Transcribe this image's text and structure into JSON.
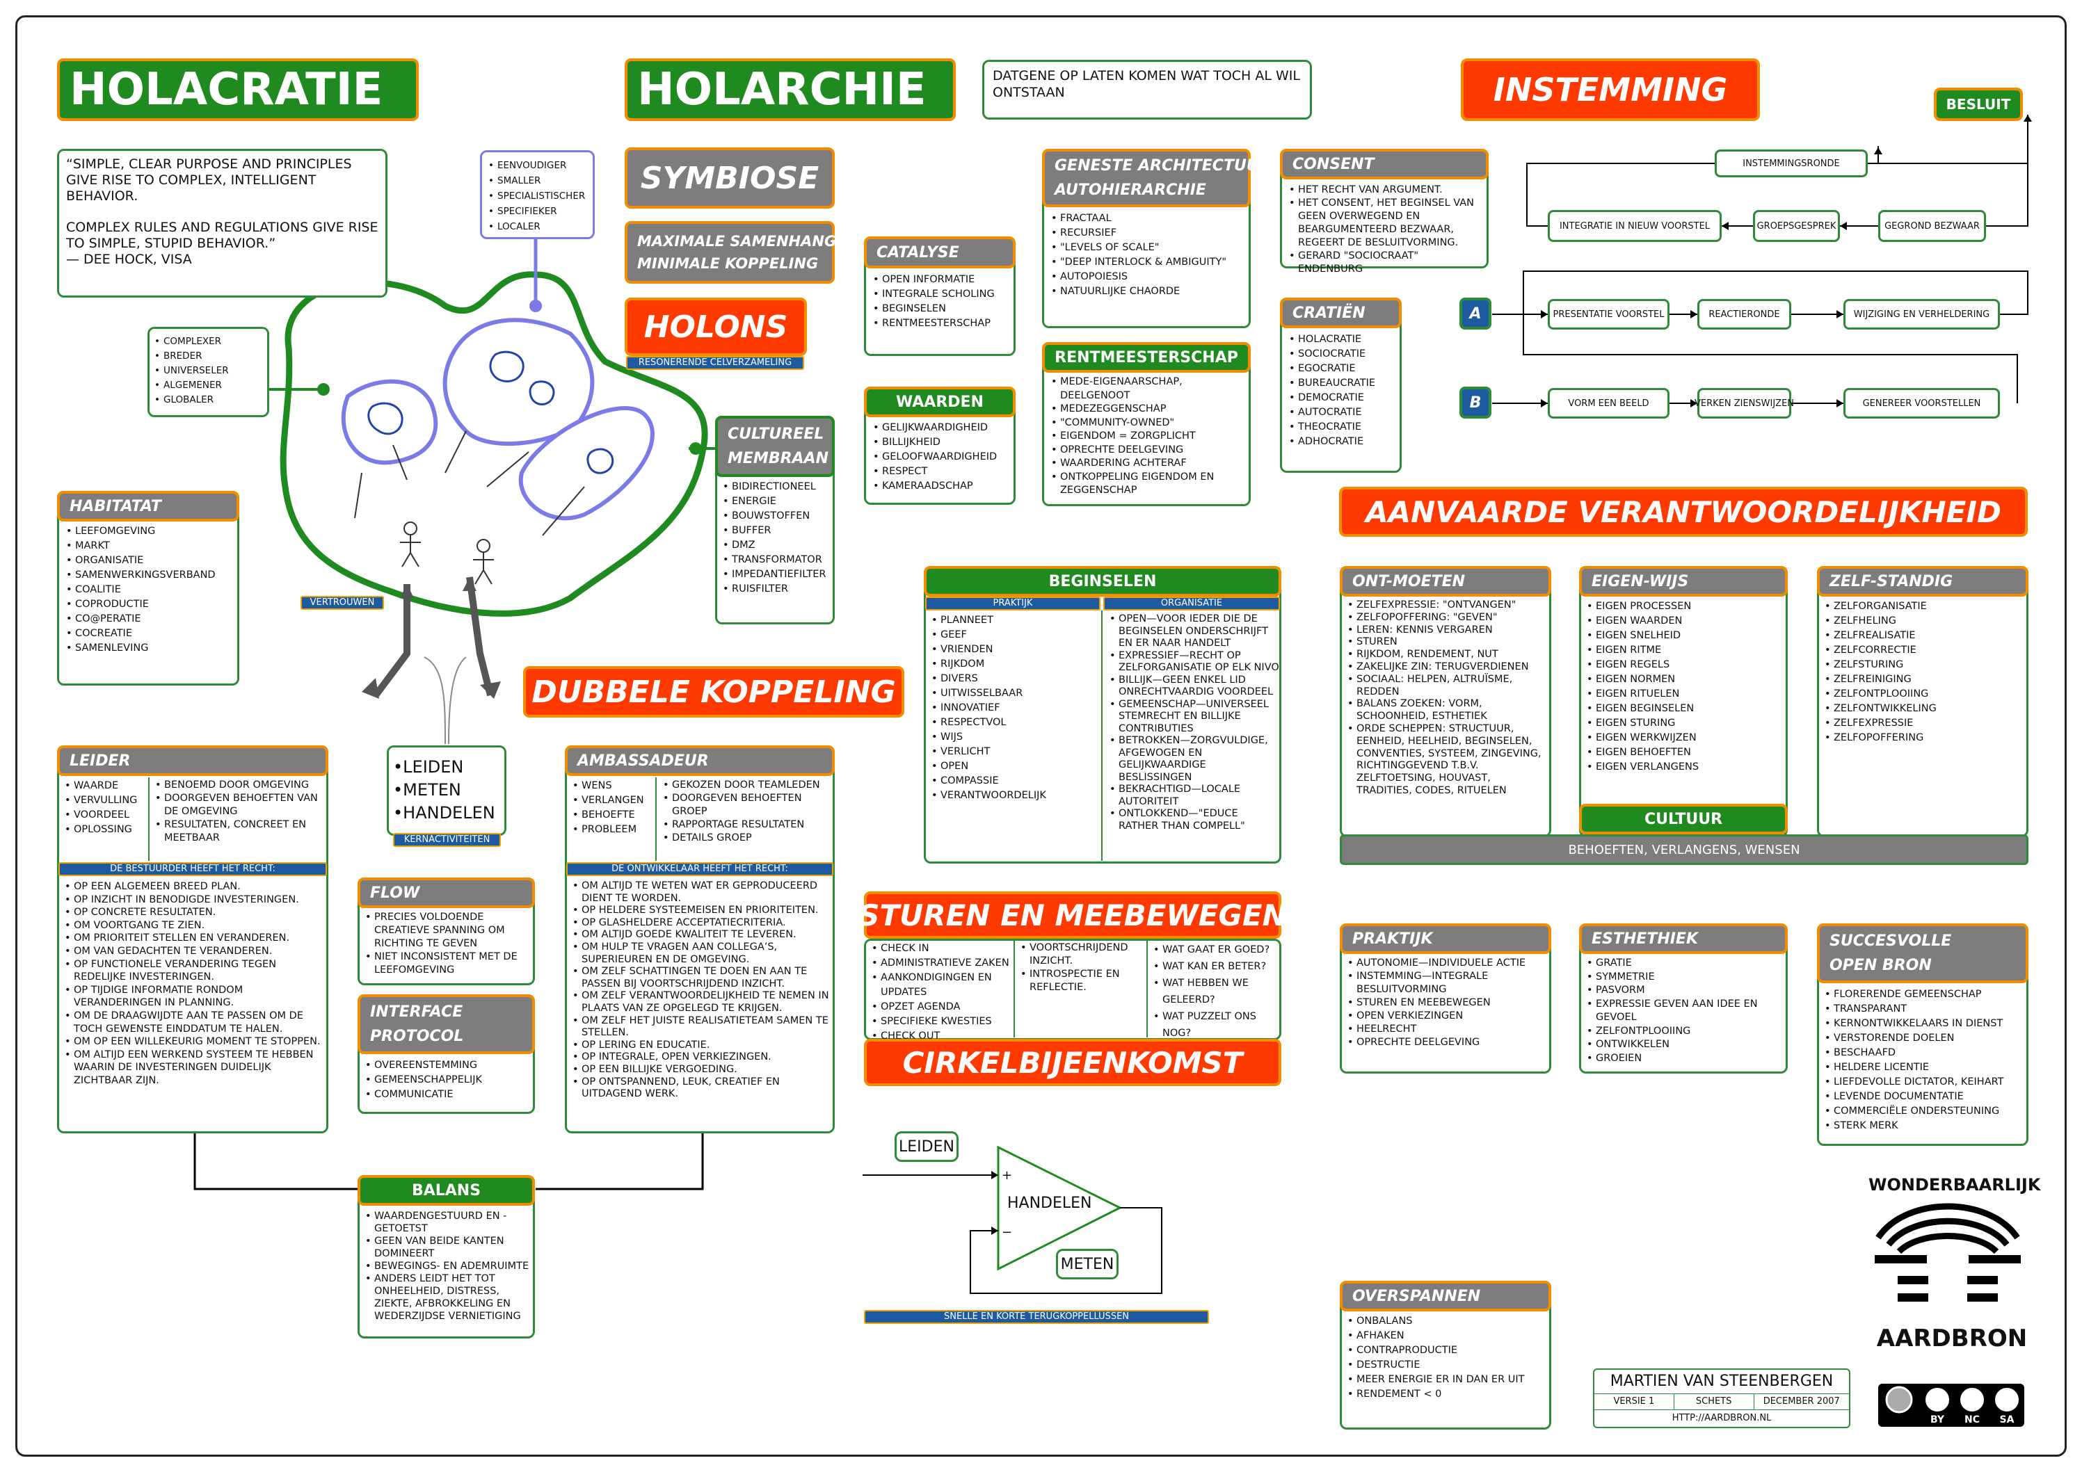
{
  "titles": {
    "holacratie": "HOLACRATIE",
    "holarchie": "HOLARCHIE",
    "instemming": "INSTEMMING",
    "symbiose": "SYMBIOSE",
    "maximale1": "MAXIMALE SAMENHANG",
    "maximale2": "MINIMALE KOPPELING",
    "holons": "HOLONS",
    "resonerende": "RESONERENDE CELVERZAMELING",
    "dubbele": "DUBBELE KOPPELING",
    "aanvaarde": "AANVAARDE VERANTWOORDELIJKHEID",
    "sturen": "STUREN EN MEEBEWEGEN",
    "cirkel": "CIRKELBIJEENKOMST"
  },
  "datgene": "DATGENE OP LATEN KOMEN WAT TOCH AL WIL ONTSTAAN",
  "quote": [
    "“SIMPLE, CLEAR PURPOSE AND PRINCIPLES GIVE RISE TO COMPLEX, INTELLIGENT BEHAVIOR.",
    "COMPLEX RULES AND REGULATIONS GIVE RISE TO SIMPLE, STUPID BEHAVIOR.”",
    "— DEE HOCK, VISA"
  ],
  "eenvoud": [
    "EENVOUDIGER",
    "SMALLER",
    "SPECIALISTISCHER",
    "SPECIFIEKER",
    "LOCALER"
  ],
  "complexer": [
    "COMPLEXER",
    "BREDER",
    "UNIVERSELER",
    "ALGEMENER",
    "GLOBALER"
  ],
  "catalyse": {
    "title": "CATALYSE",
    "items": [
      "OPEN INFORMATIE",
      "INTEGRALE SCHOLING",
      "BEGINSELEN",
      "RENTMEESTERSCHAP"
    ]
  },
  "waarden": {
    "title": "WAARDEN",
    "items": [
      "GELIJKWAARDIGHEID",
      "BILLIJKHEID",
      "GELOOFWAARDIGHEID",
      "RESPECT",
      "KAMERAADSCHAP"
    ]
  },
  "geneste": {
    "title1": "GENESTE ARCHITECTUUR",
    "title2": "AUTOHIERARCHIE",
    "items": [
      "FRACTAAL",
      "RECURSIEF",
      "\"LEVELS OF SCALE\"",
      "\"DEEP INTERLOCK & AMBIGUITY\"",
      "AUTOPOIESIS",
      "NATUURLIJKE CHAORDE"
    ]
  },
  "rentmeester": {
    "title": "RENTMEESTERSCHAP",
    "items": [
      "MEDE-EIGENAARSCHAP, DEELGENOOT",
      "MEDEZEGGENSCHAP",
      "\"COMMUNITY-OWNED\"",
      "EIGENDOM = ZORGPLICHT",
      "OPRECHTE DEELGEVING",
      "WAARDERING ACHTERAF",
      "ONTKOPPELING EIGENDOM EN ZEGGENSCHAP"
    ]
  },
  "consent": {
    "title": "CONSENT",
    "items": [
      "HET RECHT VAN ARGUMENT.",
      "HET CONSENT, HET BEGINSEL VAN GEEN OVERWEGEND EN BEARGUMENTEERD BEZWAAR, REGEERT DE BESLUITVORMING.",
      "GERARD \"SOCIOCRAAT\" ENDENBURG"
    ]
  },
  "cratien": {
    "title": "CRATIËN",
    "items": [
      "HOLACRATIE",
      "SOCIOCRATIE",
      "EGOCRATIE",
      "BUREAUCRATIE",
      "DEMOCRATIE",
      "AUTOCRATIE",
      "THEOCRATIE",
      "ADHOCRATIE"
    ]
  },
  "cultureel": {
    "title1": "CULTUREEL",
    "title2": "MEMBRAAN",
    "items": [
      "BIDIRECTIONEEL",
      "ENERGIE",
      "BOUWSTOFFEN",
      "BUFFER",
      "DMZ",
      "TRANSFORMATOR",
      "IMPEDANTIEFILTER",
      "RUISFILTER"
    ]
  },
  "habitat": {
    "title": "HABITATAT",
    "items": [
      "LEEFOMGEVING",
      "MARKT",
      "ORGANISATIE",
      "SAMENWERKINGSVERBAND",
      "COALITIE",
      "COPRODUCTIE",
      "CO@PERATIE",
      "COCREATIE",
      "SAMENLEVING"
    ]
  },
  "vertrouwen": "VERTROUWEN",
  "kern": {
    "items": [
      "LEIDEN",
      "METEN",
      "HANDELEN"
    ],
    "tag": "KERNACTIVITEITEN"
  },
  "instem": {
    "besluit": "BESLUIT",
    "ronde": "INSTEMMINGSRONDE",
    "integratie": "INTEGRATIE IN NIEUW VOORSTEL",
    "groeps": "GROEPSGESPREK",
    "gegrond": "GEGROND BEZWAAR",
    "a": "A",
    "presentatie": "PRESENTATIE VOORSTEL",
    "reactie": "REACTIERONDE",
    "wijziging": "WIJZIGING EN VERHELDERING",
    "b": "B",
    "vorm": "VORM EEN BEELD",
    "verken": "VERKEN ZIENSWIJZEN",
    "genereer": "GENEREER VOORSTELLEN"
  },
  "leider": {
    "title": "LEIDER",
    "left": [
      "WAARDE",
      "VERVULLING",
      "VOORDEEL",
      "OPLOSSING"
    ],
    "right": [
      "BENOEMD DOOR OMGEVING",
      "DOORGEVEN BEHOEFTEN VAN DE OMGEVING",
      "RESULTATEN, CONCREET EN MEETBAAR"
    ],
    "tag": "DE BESTUURDER HEEFT HET RECHT:",
    "rights": [
      "OP EEN ALGEMEEN BREED PLAN.",
      "OP INZICHT IN BENODIGDE INVESTERINGEN.",
      "OP CONCRETE RESULTATEN.",
      "OM VOORTGANG TE ZIEN.",
      "OM PRIORITEIT STELLEN EN VERANDEREN.",
      "OM VAN GEDACHTEN TE VERANDEREN.",
      "OP FUNCTIONELE VERANDERING TEGEN REDELIJKE INVESTERINGEN.",
      "OP TIJDIGE INFORMATIE RONDOM VERANDERINGEN IN PLANNING.",
      "OM DE DRAAGWIJDTE AAN TE PASSEN OM DE TOCH GEWENSTE EINDDATUM TE HALEN.",
      "OM OP EEN WILLEKEURIG MOMENT TE STOPPEN.",
      "OM ALTIJD EEN WERKEND SYSTEEM TE HEBBEN WAARIN DE INVESTERINGEN DUIDELIJK ZICHTBAAR ZIJN."
    ]
  },
  "flow": {
    "title": "FLOW",
    "items": [
      "PRECIES VOLDOENDE CREATIEVE SPANNING OM RICHTING TE GEVEN",
      "NIET INCONSISTENT MET DE LEEFOMGEVING"
    ]
  },
  "interface": {
    "title1": "INTERFACE",
    "title2": "PROTOCOL",
    "items": [
      "OVEREENSTEMMING",
      "GEMEENSCHAPPELIJK",
      "COMMUNICATIE"
    ]
  },
  "ambass": {
    "title": "AMBASSADEUR",
    "left": [
      "WENS",
      "VERLANGEN",
      "BEHOEFTE",
      "PROBLEEM"
    ],
    "right": [
      "GEKOZEN DOOR TEAMLEDEN",
      "DOORGEVEN BEHOEFTEN GROEP",
      "RAPPORTAGE RESULTATEN",
      "DETAILS GROEP"
    ],
    "tag": "DE ONTWIKKELAAR HEEFT HET RECHT:",
    "rights": [
      "OM ALTIJD TE WETEN WAT ER GEPRODUCEERD DIENT TE WORDEN.",
      "OP HELDERE SYSTEEMEISEN EN PRIORITEITEN.",
      "OP GLASHELDERE ACCEPTATIECRITERIA.",
      "OM ALTIJD GOEDE KWALITEIT TE LEVEREN.",
      "OM HULP TE VRAGEN AAN COLLEGA’S, SUPERIEUREN EN DE OMGEVING.",
      "OM ZELF SCHATTINGEN TE DOEN EN AAN TE PASSEN BIJ VOORTSCHRIJDEND INZICHT.",
      "OM ZELF VERANTWOORDELIJKHEID TE NEMEN IN PLAATS VAN ZE OPGELEGD TE KRIJGEN.",
      "OM ZELF HET JUISTE REALISATIETEAM SAMEN TE STELLEN.",
      "OP LERING EN EDUCATIE.",
      "OP INTEGRALE, OPEN VERKIEZINGEN.",
      "OP EEN BILLIJKE VERGOEDING.",
      "OP ONTSPANNEND, LEUK, CREATIEF EN UITDAGEND WERK."
    ]
  },
  "balans": {
    "title": "BALANS",
    "items": [
      "WAARDENGESTUURD EN -GETOETST",
      "GEEN VAN BEIDE KANTEN DOMINEERT",
      "BEWEGINGS- EN ADEMRUIMTE",
      "ANDERS LEIDT HET TOT ONHEELHEID, DISTRESS, ZIEKTE, AFBROKKELING EN WEDERZIJDSE VERNIETIGING"
    ]
  },
  "beginselen": {
    "title": "BEGINSELEN",
    "praktijk": "PRAKTIJK",
    "organisatie": "ORGANISATIE",
    "left": [
      "PLANNEET",
      "GEEF",
      "VRIENDEN",
      "RIJKDOM",
      "DIVERS",
      "UITWISSELBAAR",
      "INNOVATIEF",
      "RESPECTVOL",
      "WIJS",
      "VERLICHT",
      "OPEN",
      "COMPASSIE",
      "VERANTWOORDELIJK"
    ],
    "right": [
      "OPEN—VOOR IEDER DIE DE BEGINSELEN ONDERSCHRIJFT EN ER NAAR HANDELT",
      "EXPRESSIEF—RECHT OP ZELFORGANISATIE OP ELK NIVO",
      "BILLIJK—GEEN ENKEL LID ONRECHTVAARDIG VOORDEEL",
      "GEMEENSCHAP—UNIVERSEEL STEMRECHT EN BILLIJKE CONTRIBUTIES",
      "BETROKKEN—ZORGVULDIGE, AFGEWOGEN EN GELIJKWAARDIGE BESLISSINGEN",
      "BEKRACHTIGD—LOCALE AUTORITEIT",
      "ONTLOKKEND—\"EDUCE RATHER THAN COMPELL\""
    ]
  },
  "sturen": {
    "c1": [
      "CHECK IN",
      "ADMINISTRATIEVE ZAKEN",
      "AANKONDIGINGEN EN UPDATES",
      "OPZET AGENDA",
      "SPECIFIEKE KWESTIES",
      "CHECK OUT"
    ],
    "c2": [
      "VOORTSCHRIJDEND INZICHT.",
      "INTROSPECTIE EN REFLECTIE."
    ],
    "c3": [
      "WAT GAAT ER GOED?",
      "WAT KAN ER BETER?",
      "WAT HEBBEN WE GELEERD?",
      "WAT PUZZELT ONS NOG?"
    ]
  },
  "loop": {
    "leiden": "LEIDEN",
    "handelen": "HANDELEN",
    "meten": "METEN",
    "plus": "+",
    "minus": "−",
    "tag": "SNELLE EN KORTE TERUGKOPPELLUSSEN"
  },
  "ontmoeten": {
    "title": "ONT-MOETEN",
    "items": [
      "ZELFEXPRESSIE: \"ONTVANGEN\"",
      "ZELFOPOFFERING: \"GEVEN\"",
      "LEREN: KENNIS VERGAREN",
      "STUREN",
      "RIJKDOM, RENDEMENT, NUT",
      "ZAKELIJKE ZIN: TERUGVERDIENEN",
      "SOCIAAL: HELPEN, ALTRUÏSME, REDDEN",
      "BALANS ZOEKEN: VORM, SCHOONHEID, ESTHETIEK",
      "ORDE SCHEPPEN: STRUCTUUR, EENHEID, HEELHEID, BEGINSELEN, CONVENTIES, SYSTEEM, ZINGEVING, RICHTINGGEVEND T.B.V. ZELFTOETSING, HOUVAST, TRADITIES, CODES, RITUELEN"
    ]
  },
  "eigenwijs": {
    "title": "EIGEN-WIJS",
    "items": [
      "EIGEN PROCESSEN",
      "EIGEN WAARDEN",
      "EIGEN SNELHEID",
      "EIGEN RITME",
      "EIGEN REGELS",
      "EIGEN NORMEN",
      "EIGEN RITUELEN",
      "EIGEN BEGINSELEN",
      "EIGEN STURING",
      "EIGEN WERKWIJZEN",
      "EIGEN BEHOEFTEN",
      "EIGEN VERLANGENS"
    ],
    "cultuur": "CULTUUR"
  },
  "zelfstandig": {
    "title": "ZELF-STANDIG",
    "items": [
      "ZELFORGANISATIE",
      "ZELFHELING",
      "ZELFREALISATIE",
      "ZELFCORRECTIE",
      "ZELFSTURING",
      "ZELFREINIGING",
      "ZELFONTPLOOIING",
      "ZELFONTWIKKELING",
      "ZELFEXPRESSIE",
      "ZELFOPOFFERING"
    ]
  },
  "behoeften": "BEHOEFTEN, VERLANGENS, WENSEN",
  "praktijk": {
    "title": "PRAKTIJK",
    "items": [
      "AUTONOMIE—INDIVIDUELE ACTIE",
      "INSTEMMING—INTEGRALE BESLUITVORMING",
      "STUREN EN MEEBEWEGEN",
      "OPEN VERKIEZINGEN",
      "HEELRECHT",
      "OPRECHTE DEELGEVING"
    ]
  },
  "esthetiek": {
    "title": "ESTHETHIEK",
    "items": [
      "GRATIE",
      "SYMMETRIE",
      "PASVORM",
      "EXPRESSIE GEVEN AAN IDEE EN GEVOEL",
      "ZELFONTPLOOIING",
      "ONTWIKKELEN",
      "GROEIEN"
    ]
  },
  "succes": {
    "title1": "SUCCESVOLLE",
    "title2": "OPEN BRON",
    "items": [
      "FLORERENDE GEMEENSCHAP",
      "TRANSPARANT",
      "KERNONTWIKKELAARS IN DIENST",
      "VERSTORENDE DOELEN",
      "BESCHAAFD",
      "HELDERE LICENTIE",
      "LIEFDEVOLLE DICTATOR, KEIHART",
      "LEVENDE DOCUMENTATIE",
      "COMMERCIËLE ONDERSTEUNING",
      "STERK MERK"
    ]
  },
  "overspannen": {
    "title": "OVERSPANNEN",
    "items": [
      "ONBALANS",
      "AFHAKEN",
      "CONTRAPRODUCTIE",
      "DESTRUCTIE",
      "MEER ENERGIE ER IN DAN ER UIT",
      "RENDEMENT < 0"
    ]
  },
  "brand": {
    "top": "WONDERBAARLIJK",
    "bottom": "AARDBRON"
  },
  "author": {
    "name": "MARTIEN VAN STEENBERGEN",
    "versie": "VERSIE 1",
    "schets": "SCHETS",
    "datum": "DECEMBER 2007",
    "url": "HTTP://AARDBRON.NL"
  },
  "cc": {
    "by": "BY",
    "nc": "NC",
    "sa": "SA"
  },
  "colors": {
    "green": "#1f8a1f",
    "red": "#ff3a00",
    "orange": "#f28c00",
    "grey": "#7d7d7d",
    "blue": "#1e5aa0"
  }
}
